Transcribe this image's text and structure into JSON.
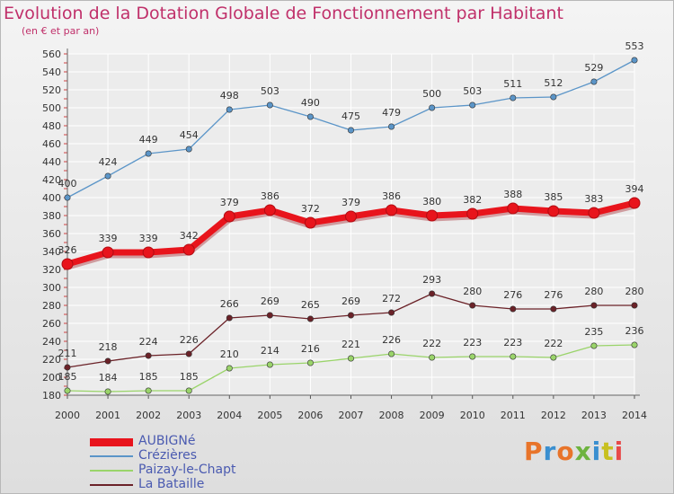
{
  "title": "Evolution de la Dotation Globale de Fonctionnement par Habitant",
  "subtitle": "(en € et par an)",
  "logo": {
    "text": "Proxiti",
    "colors": [
      "#e8742a",
      "#3a8fd0",
      "#e8742a",
      "#6db33f",
      "#3a8fd0",
      "#c8c020",
      "#e84a4a"
    ]
  },
  "chart_data": {
    "type": "line",
    "x": [
      2000,
      2001,
      2002,
      2003,
      2004,
      2005,
      2006,
      2007,
      2008,
      2009,
      2010,
      2011,
      2012,
      2013,
      2014
    ],
    "ylim": [
      180,
      560
    ],
    "yticks": [
      180,
      200,
      220,
      240,
      260,
      280,
      300,
      320,
      340,
      360,
      380,
      400,
      420,
      440,
      460,
      480,
      500,
      520,
      540,
      560
    ],
    "grid": true,
    "legend_position": "bottom-left",
    "series": [
      {
        "name": "AUBIGNé",
        "color": "#e8141c",
        "values": [
          326,
          339,
          339,
          342,
          379,
          386,
          372,
          379,
          386,
          380,
          382,
          388,
          385,
          383,
          394
        ]
      },
      {
        "name": "Crézières",
        "color": "#5b95c8",
        "values": [
          400,
          424,
          449,
          454,
          498,
          503,
          490,
          475,
          479,
          500,
          503,
          511,
          512,
          529,
          553
        ]
      },
      {
        "name": "Paizay-le-Chapt",
        "color": "#9ad46a",
        "values": [
          185,
          184,
          185,
          185,
          210,
          214,
          216,
          221,
          226,
          222,
          223,
          223,
          222,
          235,
          236
        ]
      },
      {
        "name": "La Bataille",
        "color": "#6b2228",
        "values": [
          211,
          218,
          224,
          226,
          266,
          269,
          265,
          269,
          272,
          293,
          280,
          276,
          276,
          280,
          280
        ]
      }
    ]
  }
}
